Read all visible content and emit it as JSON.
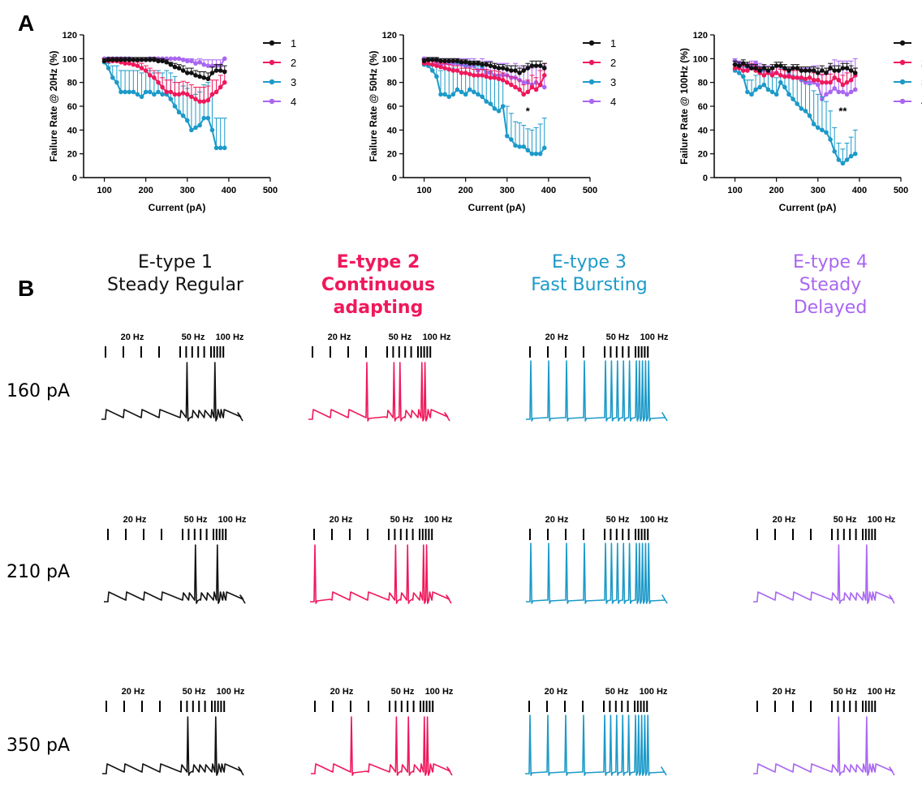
{
  "panels": {
    "a": "A",
    "b": "B"
  },
  "colors": {
    "1": "#111111",
    "2": "#f0185c",
    "3": "#1c9ac9",
    "4": "#a966f2"
  },
  "legend_labels": [
    "1",
    "2",
    "3",
    "4"
  ],
  "etypes": [
    {
      "lines": [
        "E-type 1",
        "Steady Regular"
      ],
      "color": "#111111",
      "bold": false
    },
    {
      "lines": [
        "E-type 2",
        "Continuous",
        "adapting"
      ],
      "color": "#f0185c",
      "bold": true
    },
    {
      "lines": [
        "E-type 3",
        "Fast Bursting"
      ],
      "color": "#1c9ac9",
      "bold": false
    },
    {
      "lines": [
        "E-type 4",
        "Steady",
        "Delayed"
      ],
      "color": "#a966f2",
      "bold": false
    }
  ],
  "currents": [
    "160 pA",
    "210 pA",
    "350 pA"
  ],
  "freq_labels": [
    "20 Hz",
    "50 Hz",
    "100 Hz"
  ],
  "trace_spikes": {
    "160": {
      "1": [
        5,
        10
      ],
      "2": [
        3,
        5,
        6,
        10,
        11
      ],
      "3": "all",
      "4": null
    },
    "210": {
      "1": [
        6,
        10
      ],
      "2": [
        0,
        5,
        7,
        10,
        11
      ],
      "3": "all",
      "4": [
        5,
        10
      ]
    },
    "350": {
      "1": [
        5,
        10
      ],
      "2": [
        2,
        5,
        7,
        10,
        11
      ],
      "3": "all",
      "4": [
        5,
        10
      ]
    }
  },
  "chart_data": [
    {
      "type": "line",
      "xlabel": "Current (pA)",
      "ylabel": "Failure Rate @ 20Hz (%)",
      "xlim": [
        50,
        500
      ],
      "ylim": [
        0,
        120
      ],
      "xticks": [
        100,
        200,
        300,
        400,
        500
      ],
      "yticks": [
        0,
        20,
        40,
        60,
        80,
        100,
        120
      ],
      "legend": "top-right",
      "annotation": null,
      "x": [
        100,
        110,
        120,
        130,
        140,
        150,
        160,
        170,
        180,
        190,
        200,
        210,
        220,
        230,
        240,
        250,
        260,
        270,
        280,
        290,
        300,
        310,
        320,
        330,
        340,
        350,
        360,
        370,
        380,
        390
      ],
      "series": [
        {
          "name": "1",
          "values": [
            98,
            99,
            99,
            99,
            99,
            99,
            99,
            99,
            99,
            99,
            99,
            99,
            99,
            98,
            98,
            97,
            95,
            93,
            92,
            90,
            88,
            88,
            86,
            85,
            84,
            83,
            88,
            90,
            90,
            89
          ]
        },
        {
          "name": "2",
          "values": [
            98,
            98,
            98,
            98,
            97,
            96,
            96,
            95,
            94,
            92,
            90,
            86,
            84,
            80,
            76,
            72,
            72,
            70,
            70,
            71,
            70,
            68,
            66,
            64,
            64,
            65,
            70,
            72,
            76,
            80
          ]
        },
        {
          "name": "3",
          "values": [
            97,
            92,
            84,
            80,
            72,
            72,
            72,
            72,
            70,
            68,
            72,
            72,
            70,
            72,
            70,
            70,
            66,
            60,
            55,
            52,
            48,
            40,
            42,
            44,
            50,
            50,
            40,
            25,
            25,
            25
          ]
        },
        {
          "name": "4",
          "values": [
            100,
            100,
            100,
            100,
            100,
            100,
            100,
            99,
            99,
            99,
            99,
            100,
            100,
            100,
            100,
            100,
            100,
            100,
            100,
            99,
            98,
            98,
            96,
            97,
            95,
            94,
            94,
            94,
            94,
            100
          ]
        }
      ],
      "errors": [
        [
          2,
          2,
          2,
          2,
          2,
          2,
          2,
          2,
          2,
          2,
          2,
          2,
          2,
          2,
          2,
          2,
          2,
          3,
          3,
          4,
          4,
          4,
          4,
          4,
          5,
          5,
          5,
          5,
          5,
          5
        ],
        [
          2,
          2,
          2,
          2,
          3,
          3,
          3,
          3,
          3,
          4,
          4,
          6,
          6,
          8,
          8,
          10,
          10,
          10,
          10,
          10,
          10,
          10,
          10,
          12,
          12,
          12,
          12,
          10,
          10,
          10
        ],
        [
          3,
          4,
          10,
          14,
          18,
          18,
          18,
          18,
          20,
          20,
          18,
          18,
          18,
          18,
          18,
          20,
          22,
          25,
          25,
          25,
          27,
          28,
          28,
          28,
          28,
          30,
          30,
          25,
          25,
          25
        ],
        [
          0,
          0,
          0,
          0,
          0,
          0,
          0,
          1,
          1,
          1,
          1,
          0,
          0,
          0,
          0,
          0,
          0,
          0,
          0,
          1,
          2,
          2,
          3,
          3,
          4,
          5,
          5,
          5,
          5,
          0
        ]
      ]
    },
    {
      "type": "line",
      "xlabel": "Current (pA)",
      "ylabel": "Failure Rate @ 50Hz (%)",
      "xlim": [
        50,
        500
      ],
      "ylim": [
        0,
        120
      ],
      "xticks": [
        100,
        200,
        300,
        400,
        500
      ],
      "yticks": [
        0,
        20,
        40,
        60,
        80,
        100,
        120
      ],
      "legend": "top-right",
      "annotation": {
        "text": "*",
        "x": 350,
        "y": 53
      },
      "x": [
        100,
        110,
        120,
        130,
        140,
        150,
        160,
        170,
        180,
        190,
        200,
        210,
        220,
        230,
        240,
        250,
        260,
        270,
        280,
        290,
        300,
        310,
        320,
        330,
        340,
        350,
        360,
        370,
        380,
        390
      ],
      "series": [
        {
          "name": "1",
          "values": [
            98,
            99,
            99,
            99,
            98,
            98,
            98,
            98,
            98,
            97,
            97,
            96,
            96,
            96,
            95,
            95,
            94,
            93,
            92,
            92,
            91,
            90,
            90,
            88,
            90,
            92,
            94,
            94,
            94,
            92
          ]
        },
        {
          "name": "2",
          "values": [
            96,
            96,
            95,
            94,
            93,
            92,
            91,
            90,
            90,
            88,
            88,
            87,
            86,
            86,
            86,
            85,
            84,
            84,
            83,
            82,
            80,
            78,
            76,
            74,
            70,
            72,
            76,
            74,
            78,
            86
          ]
        },
        {
          "name": "3",
          "values": [
            95,
            94,
            90,
            85,
            70,
            70,
            68,
            70,
            74,
            72,
            70,
            74,
            72,
            70,
            68,
            64,
            62,
            58,
            56,
            60,
            35,
            32,
            27,
            26,
            26,
            23,
            20,
            20,
            20,
            25
          ]
        },
        {
          "name": "4",
          "values": [
            100,
            99,
            99,
            96,
            94,
            96,
            96,
            96,
            96,
            95,
            94,
            94,
            94,
            90,
            92,
            88,
            88,
            86,
            86,
            86,
            86,
            84,
            84,
            82,
            80,
            80,
            78,
            80,
            78,
            76
          ]
        }
      ],
      "errors": [
        [
          2,
          2,
          2,
          2,
          2,
          2,
          2,
          2,
          2,
          2,
          2,
          2,
          2,
          2,
          2,
          2,
          3,
          3,
          3,
          3,
          3,
          4,
          4,
          4,
          4,
          4,
          4,
          4,
          4,
          4
        ],
        [
          3,
          3,
          3,
          3,
          3,
          4,
          4,
          4,
          4,
          4,
          4,
          5,
          5,
          5,
          5,
          6,
          6,
          6,
          6,
          6,
          6,
          7,
          8,
          8,
          8,
          10,
          10,
          10,
          12,
          10
        ],
        [
          4,
          4,
          10,
          14,
          20,
          22,
          22,
          22,
          22,
          24,
          24,
          24,
          24,
          24,
          25,
          26,
          27,
          28,
          28,
          28,
          25,
          22,
          20,
          20,
          18,
          18,
          20,
          22,
          25,
          25
        ],
        [
          0,
          1,
          1,
          4,
          6,
          4,
          4,
          4,
          4,
          5,
          6,
          6,
          6,
          8,
          8,
          10,
          10,
          10,
          10,
          10,
          10,
          10,
          12,
          12,
          12,
          14,
          14,
          14,
          16,
          18
        ]
      ]
    },
    {
      "type": "line",
      "xlabel": "Current (pA)",
      "ylabel": "Failure Rate @ 100Hz (%)",
      "xlim": [
        50,
        500
      ],
      "ylim": [
        0,
        120
      ],
      "xticks": [
        100,
        200,
        300,
        400,
        500
      ],
      "yticks": [
        0,
        20,
        40,
        60,
        80,
        100,
        120
      ],
      "legend": "top-right",
      "annotation": {
        "text": "**",
        "x": 360,
        "y": 53
      },
      "x": [
        100,
        110,
        120,
        130,
        140,
        150,
        160,
        170,
        180,
        190,
        200,
        210,
        220,
        230,
        240,
        250,
        260,
        270,
        280,
        290,
        300,
        310,
        320,
        330,
        340,
        350,
        360,
        370,
        380,
        390
      ],
      "series": [
        {
          "name": "1",
          "values": [
            95,
            94,
            96,
            94,
            92,
            92,
            90,
            92,
            90,
            92,
            94,
            94,
            92,
            90,
            92,
            92,
            90,
            90,
            90,
            90,
            88,
            90,
            88,
            92,
            90,
            90,
            92,
            92,
            90,
            88
          ]
        },
        {
          "name": "2",
          "values": [
            92,
            92,
            90,
            90,
            92,
            90,
            88,
            86,
            88,
            86,
            88,
            86,
            85,
            85,
            84,
            84,
            84,
            83,
            84,
            82,
            82,
            80,
            80,
            80,
            84,
            82,
            78,
            80,
            82,
            86
          ]
        },
        {
          "name": "3",
          "values": [
            90,
            88,
            85,
            72,
            70,
            74,
            76,
            78,
            74,
            72,
            70,
            80,
            76,
            70,
            66,
            62,
            58,
            56,
            52,
            45,
            42,
            40,
            38,
            32,
            22,
            15,
            12,
            15,
            18,
            20
          ]
        },
        {
          "name": "4",
          "values": [
            98,
            96,
            94,
            92,
            94,
            96,
            92,
            90,
            90,
            88,
            88,
            86,
            85,
            86,
            84,
            84,
            82,
            80,
            80,
            80,
            78,
            66,
            70,
            72,
            75,
            72,
            72,
            70,
            72,
            74
          ]
        }
      ],
      "errors": [
        [
          3,
          3,
          3,
          3,
          3,
          3,
          3,
          3,
          3,
          3,
          3,
          3,
          3,
          3,
          3,
          3,
          3,
          3,
          3,
          3,
          4,
          4,
          4,
          4,
          4,
          4,
          4,
          4,
          4,
          4
        ],
        [
          3,
          3,
          4,
          4,
          4,
          4,
          4,
          5,
          5,
          5,
          5,
          5,
          5,
          5,
          6,
          6,
          6,
          6,
          6,
          6,
          6,
          7,
          7,
          7,
          7,
          8,
          8,
          8,
          8,
          6
        ],
        [
          5,
          6,
          8,
          10,
          12,
          12,
          12,
          12,
          14,
          14,
          14,
          14,
          16,
          18,
          20,
          22,
          24,
          25,
          26,
          28,
          28,
          28,
          26,
          24,
          20,
          14,
          12,
          14,
          16,
          20
        ],
        [
          2,
          2,
          2,
          4,
          4,
          2,
          4,
          4,
          4,
          5,
          5,
          6,
          6,
          6,
          8,
          8,
          10,
          12,
          12,
          14,
          16,
          20,
          22,
          22,
          24,
          26,
          26,
          28,
          26,
          26
        ]
      ]
    }
  ]
}
